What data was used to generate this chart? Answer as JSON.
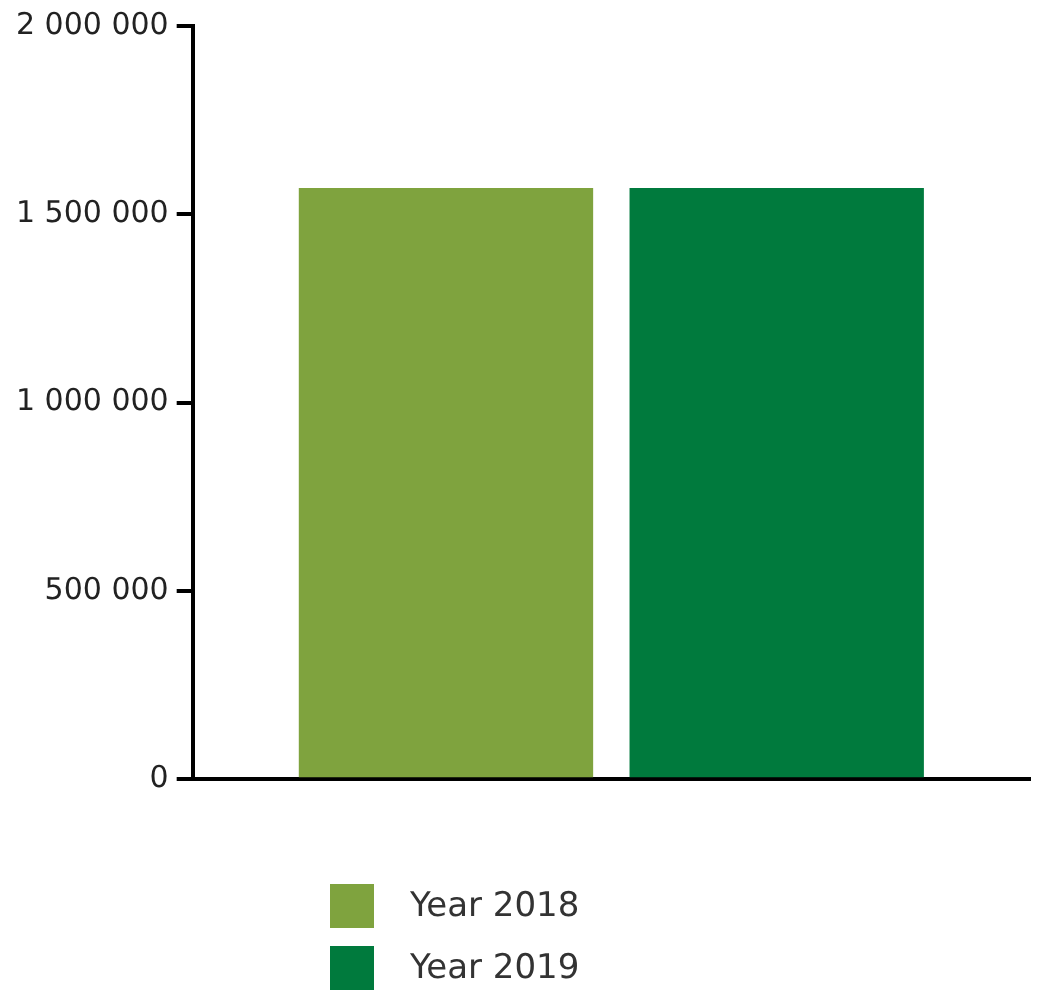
{
  "chart_data": {
    "type": "bar",
    "categories": [
      null
    ],
    "series": [
      {
        "name": "Year 2018",
        "color": "#7fa33e",
        "values": [
          1570000
        ]
      },
      {
        "name": "Year 2019",
        "color": "#007a3d",
        "values": [
          1570000
        ]
      }
    ],
    "ylim": [
      0,
      2000000
    ],
    "yticks": [
      0,
      {
        "value": 500000,
        "label": "500 000"
      },
      {
        "value": 1000000,
        "label": "1 000 000"
      },
      {
        "value": 1500000,
        "label": "1 500 000"
      },
      {
        "value": 2000000,
        "label": "2 000 000"
      }
    ],
    "legend": "bottom",
    "grid": false
  }
}
